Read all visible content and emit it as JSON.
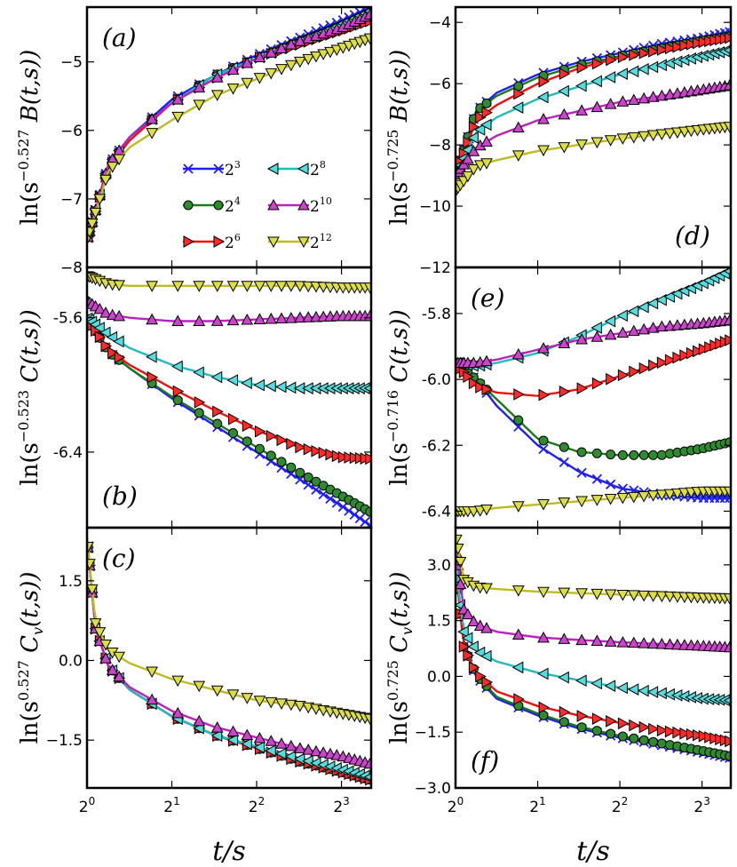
{
  "colors": {
    "2^3": "#1f1ff0",
    "2^4": "#1a7a1a",
    "2^6": "#ee1111",
    "2^8": "#22bbbb",
    "2^10": "#bb22bb",
    "2^12": "#bbbb22",
    "marker_green": "#2e8b2e",
    "marker_red": "#ff2a2a",
    "marker_cyan": "#55dddd",
    "marker_magenta": "#cc44cc",
    "marker_yellow": "#dddd44"
  },
  "x_axis": {
    "label": "t/s",
    "tick_labels": [
      [
        "2",
        "0"
      ],
      [
        "2",
        "1"
      ],
      [
        "2",
        "2"
      ],
      [
        "2",
        "3"
      ]
    ],
    "log2_range": [
      0,
      3.35
    ]
  },
  "legend": {
    "entries": [
      {
        "base": "2",
        "exp": "3",
        "marker": "x",
        "color": "2^3"
      },
      {
        "base": "2",
        "exp": "8",
        "marker": "tri-left",
        "color": "2^8"
      },
      {
        "base": "2",
        "exp": "4",
        "marker": "circle",
        "color": "2^4"
      },
      {
        "base": "2",
        "exp": "10",
        "marker": "tri-up",
        "color": "2^10"
      },
      {
        "base": "2",
        "exp": "6",
        "marker": "tri-right",
        "color": "2^6"
      },
      {
        "base": "2",
        "exp": "12",
        "marker": "tri-down",
        "color": "2^12"
      }
    ]
  },
  "chart_data": [
    {
      "panel": "(a)",
      "type": "line",
      "ylabel": {
        "pre": "ln(s",
        "exp": "−0.527",
        "post": " B(t,s))"
      },
      "ylim": [
        -8,
        -4.2
      ],
      "yticks": [
        -8,
        -7,
        -6,
        -5
      ],
      "ytick_labels": [
        "−8",
        "−7",
        "−6",
        "−5"
      ],
      "x_log2": [
        0,
        0.25,
        0.5,
        1,
        1.5,
        2,
        2.5,
        3,
        3.35
      ],
      "series": [
        {
          "name": "2^3",
          "marker": "x",
          "y": [
            -7.6,
            -6.5,
            -6.1,
            -5.55,
            -5.2,
            -4.9,
            -4.65,
            -4.4,
            -4.2
          ]
        },
        {
          "name": "2^4",
          "marker": "circle",
          "y": [
            -7.6,
            -6.55,
            -6.1,
            -5.6,
            -5.2,
            -4.95,
            -4.7,
            -4.5,
            -4.35
          ]
        },
        {
          "name": "2^6",
          "marker": "tri-right",
          "y": [
            -7.6,
            -6.55,
            -6.15,
            -5.6,
            -5.25,
            -4.95,
            -4.75,
            -4.55,
            -4.4
          ]
        },
        {
          "name": "2^8",
          "marker": "tri-left",
          "y": [
            -7.6,
            -6.5,
            -6.1,
            -5.6,
            -5.2,
            -4.95,
            -4.7,
            -4.45,
            -4.25
          ]
        },
        {
          "name": "2^10",
          "marker": "tri-up",
          "y": [
            -7.6,
            -6.5,
            -6.1,
            -5.6,
            -5.25,
            -4.95,
            -4.7,
            -4.5,
            -4.3
          ]
        },
        {
          "name": "2^12",
          "marker": "tri-down",
          "y": [
            -7.6,
            -6.6,
            -6.25,
            -5.85,
            -5.5,
            -5.25,
            -5.0,
            -4.8,
            -4.65
          ]
        }
      ]
    },
    {
      "panel": "(d)",
      "type": "line",
      "ylabel": {
        "pre": "ln(s",
        "exp": "−0.725",
        "post": " B(t,s))"
      },
      "ylim": [
        -12,
        -3.5
      ],
      "yticks": [
        -12,
        -10,
        -8,
        -6,
        -4
      ],
      "ytick_labels": [
        "−12",
        "−10",
        "−8",
        "−6",
        "−4"
      ],
      "x_log2": [
        0,
        0.25,
        0.5,
        1,
        1.5,
        2,
        2.5,
        3,
        3.35
      ],
      "series": [
        {
          "name": "2^3",
          "marker": "x",
          "y": [
            -9.0,
            -6.9,
            -6.3,
            -5.7,
            -5.3,
            -5.0,
            -4.7,
            -4.5,
            -4.3
          ]
        },
        {
          "name": "2^4",
          "marker": "circle",
          "y": [
            -9.0,
            -6.9,
            -6.4,
            -5.8,
            -5.4,
            -5.1,
            -4.85,
            -4.6,
            -4.45
          ]
        },
        {
          "name": "2^6",
          "marker": "tri-right",
          "y": [
            -9.0,
            -7.2,
            -6.7,
            -6.0,
            -5.5,
            -5.15,
            -4.9,
            -4.65,
            -4.5
          ]
        },
        {
          "name": "2^8",
          "marker": "tri-left",
          "y": [
            -9.0,
            -7.6,
            -7.1,
            -6.5,
            -6.1,
            -5.7,
            -5.4,
            -5.1,
            -4.9
          ]
        },
        {
          "name": "2^10",
          "marker": "tri-up",
          "y": [
            -9.0,
            -8.1,
            -7.7,
            -7.2,
            -6.9,
            -6.6,
            -6.4,
            -6.2,
            -6.05
          ]
        },
        {
          "name": "2^12",
          "marker": "tri-down",
          "y": [
            -9.5,
            -8.7,
            -8.5,
            -8.2,
            -8.0,
            -7.8,
            -7.65,
            -7.5,
            -7.4
          ]
        }
      ]
    },
    {
      "panel": "(b)",
      "type": "line",
      "ylabel": {
        "pre": "ln(s",
        "exp": "−0.523",
        "post": " C(t,s))"
      },
      "ylim": [
        -6.85,
        -5.3
      ],
      "yticks": [
        -6.4,
        -5.6
      ],
      "ytick_labels": [
        "-6.4",
        "-5.6"
      ],
      "x_log2": [
        0,
        0.25,
        0.5,
        1,
        1.5,
        2,
        2.5,
        3,
        3.35
      ],
      "series": [
        {
          "name": "2^3",
          "marker": "x",
          "y": [
            -5.6,
            -5.8,
            -5.9,
            -6.08,
            -6.24,
            -6.4,
            -6.56,
            -6.72,
            -6.84
          ]
        },
        {
          "name": "2^4",
          "marker": "circle",
          "y": [
            -5.6,
            -5.8,
            -5.9,
            -6.07,
            -6.22,
            -6.37,
            -6.52,
            -6.66,
            -6.76
          ]
        },
        {
          "name": "2^6",
          "marker": "tri-right",
          "y": [
            -5.6,
            -5.79,
            -5.88,
            -6.02,
            -6.15,
            -6.27,
            -6.37,
            -6.43,
            -6.44
          ]
        },
        {
          "name": "2^8",
          "marker": "tri-left",
          "y": [
            -5.6,
            -5.7,
            -5.78,
            -5.88,
            -5.95,
            -6.0,
            -6.02,
            -6.02,
            -6.02
          ]
        },
        {
          "name": "2^10",
          "marker": "tri-up",
          "y": [
            -5.5,
            -5.58,
            -5.6,
            -5.62,
            -5.62,
            -5.61,
            -5.6,
            -5.59,
            -5.59
          ]
        },
        {
          "name": "2^12",
          "marker": "tri-down",
          "y": [
            -5.35,
            -5.4,
            -5.41,
            -5.41,
            -5.41,
            -5.41,
            -5.41,
            -5.42,
            -5.42
          ]
        }
      ]
    },
    {
      "panel": "(e)",
      "type": "line",
      "ylabel": {
        "pre": "ln(s",
        "exp": "−0.716",
        "post": " C(t,s))"
      },
      "ylim": [
        -6.45,
        -5.66
      ],
      "yticks": [
        -6.4,
        -6.2,
        -6.0,
        -5.8
      ],
      "ytick_labels": [
        "-6.4",
        "-6.2",
        "-6.0",
        "-5.8"
      ],
      "x_log2": [
        0,
        0.25,
        0.5,
        1,
        1.5,
        2,
        2.5,
        3,
        3.35
      ],
      "series": [
        {
          "name": "2^3",
          "marker": "x",
          "y": [
            -5.95,
            -6.0,
            -6.08,
            -6.2,
            -6.28,
            -6.33,
            -6.35,
            -6.36,
            -6.36
          ]
        },
        {
          "name": "2^4",
          "marker": "circle",
          "y": [
            -5.95,
            -6.0,
            -6.06,
            -6.18,
            -6.22,
            -6.23,
            -6.23,
            -6.21,
            -6.19
          ]
        },
        {
          "name": "2^6",
          "marker": "tri-right",
          "y": [
            -5.95,
            -6.02,
            -6.04,
            -6.05,
            -6.03,
            -5.99,
            -5.95,
            -5.91,
            -5.88
          ]
        },
        {
          "name": "2^8",
          "marker": "tri-left",
          "y": [
            -5.95,
            -5.96,
            -5.95,
            -5.92,
            -5.87,
            -5.81,
            -5.76,
            -5.71,
            -5.67
          ]
        },
        {
          "name": "2^10",
          "marker": "tri-up",
          "y": [
            -5.95,
            -5.95,
            -5.94,
            -5.91,
            -5.88,
            -5.86,
            -5.84,
            -5.83,
            -5.82
          ]
        },
        {
          "name": "2^12",
          "marker": "tri-down",
          "y": [
            -6.4,
            -6.4,
            -6.39,
            -6.38,
            -6.37,
            -6.36,
            -6.35,
            -6.34,
            -6.34
          ]
        }
      ]
    },
    {
      "panel": "(c)",
      "type": "line",
      "ylabel": {
        "pre": "ln(s",
        "exp": "0.527",
        "post": " C",
        "sub": "v",
        "post2": "(t,s))"
      },
      "ylim": [
        -2.4,
        2.5
      ],
      "yticks": [
        -1.5,
        0.0,
        1.5
      ],
      "ytick_labels": [
        "−1.5",
        "0.0",
        "1.5"
      ],
      "x_log2": [
        0,
        0.1,
        0.25,
        0.5,
        1,
        1.5,
        2,
        2.5,
        3,
        3.35
      ],
      "series": [
        {
          "name": "2^3",
          "marker": "x",
          "y": [
            2.3,
            0.6,
            -0.1,
            -0.55,
            -1.05,
            -1.4,
            -1.65,
            -1.9,
            -2.1,
            -2.25
          ]
        },
        {
          "name": "2^4",
          "marker": "circle",
          "y": [
            2.3,
            0.6,
            -0.1,
            -0.55,
            -1.05,
            -1.4,
            -1.65,
            -1.9,
            -2.1,
            -2.25
          ]
        },
        {
          "name": "2^6",
          "marker": "tri-right",
          "y": [
            2.3,
            0.6,
            -0.1,
            -0.55,
            -1.05,
            -1.4,
            -1.65,
            -1.9,
            -2.1,
            -2.25
          ]
        },
        {
          "name": "2^8",
          "marker": "tri-left",
          "y": [
            2.3,
            0.6,
            -0.1,
            -0.55,
            -1.05,
            -1.4,
            -1.62,
            -1.85,
            -2.05,
            -2.2
          ]
        },
        {
          "name": "2^10",
          "marker": "tri-up",
          "y": [
            2.3,
            0.6,
            -0.1,
            -0.5,
            -0.95,
            -1.25,
            -1.45,
            -1.65,
            -1.8,
            -1.95
          ]
        },
        {
          "name": "2^12",
          "marker": "tri-down",
          "y": [
            2.3,
            0.7,
            0.2,
            -0.05,
            -0.35,
            -0.55,
            -0.75,
            -0.85,
            -1.0,
            -1.1
          ]
        }
      ]
    },
    {
      "panel": "(f)",
      "type": "line",
      "ylabel": {
        "pre": "ln(s",
        "exp": "0.725",
        "post": " C",
        "sub": "v",
        "post2": "(t,s))"
      },
      "ylim": [
        -3.0,
        4.0
      ],
      "yticks": [
        -3.0,
        -1.5,
        0.0,
        1.5,
        3.0
      ],
      "ytick_labels": [
        "−3.0",
        "−1.5",
        "0.0",
        "1.5",
        "3.0"
      ],
      "x_log2": [
        0,
        0.1,
        0.25,
        0.5,
        1,
        1.5,
        2,
        2.5,
        3,
        3.35
      ],
      "series": [
        {
          "name": "2^3",
          "marker": "x",
          "y": [
            3.0,
            0.8,
            0.0,
            -0.6,
            -1.05,
            -1.4,
            -1.65,
            -1.85,
            -2.05,
            -2.2
          ]
        },
        {
          "name": "2^4",
          "marker": "circle",
          "y": [
            3.0,
            0.8,
            0.05,
            -0.55,
            -1.0,
            -1.35,
            -1.6,
            -1.8,
            -2.0,
            -2.15
          ]
        },
        {
          "name": "2^6",
          "marker": "tri-right",
          "y": [
            3.0,
            0.8,
            0.1,
            -0.4,
            -0.8,
            -1.05,
            -1.25,
            -1.45,
            -1.6,
            -1.75
          ]
        },
        {
          "name": "2^8",
          "marker": "tri-left",
          "y": [
            3.0,
            1.2,
            0.7,
            0.4,
            0.1,
            -0.1,
            -0.3,
            -0.45,
            -0.6,
            -0.65
          ]
        },
        {
          "name": "2^10",
          "marker": "tri-up",
          "y": [
            3.5,
            1.8,
            1.4,
            1.2,
            1.05,
            0.98,
            0.92,
            0.87,
            0.82,
            0.78
          ]
        },
        {
          "name": "2^12",
          "marker": "tri-down",
          "y": [
            3.8,
            2.6,
            2.4,
            2.35,
            2.28,
            2.24,
            2.2,
            2.16,
            2.12,
            2.1
          ]
        }
      ]
    }
  ]
}
